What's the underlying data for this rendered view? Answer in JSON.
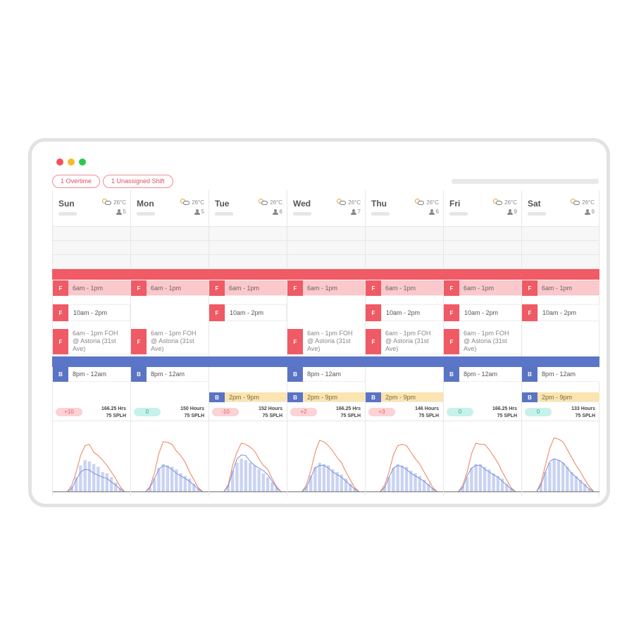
{
  "alerts": [
    "1 Overtime",
    "1 Unassigned Shift"
  ],
  "colors": {
    "shift_f": "#ef5a65",
    "shift_b": "#5a74c4",
    "bar": "#c9d3f2",
    "forecast_line": "#f07f5a",
    "actual_line": "#7d8fd8"
  },
  "days": [
    {
      "name": "Sun",
      "temp": "26°C",
      "staff": "5",
      "shifts": {
        "s1": "6am - 1pm",
        "s2": "10am - 2pm",
        "s3": "6am - 1pm FOH @ Astoria (31st Ave)",
        "s4": "8pm - 12am",
        "s5": ""
      },
      "badge": "+10",
      "badge_kind": "red",
      "hours": "166.25 Hrs",
      "splh": "75 SPLH",
      "forecast": [
        0,
        0,
        0,
        0,
        10,
        30,
        55,
        70,
        72,
        60,
        55,
        48,
        40,
        30,
        20,
        8,
        0,
        0
      ],
      "actual": [
        0,
        0,
        0,
        0,
        5,
        18,
        30,
        34,
        33,
        28,
        25,
        22,
        20,
        15,
        10,
        4,
        0,
        0
      ],
      "bars": [
        0,
        0,
        0,
        0,
        8,
        22,
        40,
        48,
        46,
        42,
        38,
        30,
        28,
        22,
        14,
        6,
        0,
        0
      ]
    },
    {
      "name": "Mon",
      "temp": "26°C",
      "staff": "5",
      "shifts": {
        "s1": "6am - 1pm",
        "s2": "",
        "s3": "6am - 1pm FOH @ Astoria (31st Ave)",
        "s4": "8pm - 12am",
        "s5": ""
      },
      "badge": "0",
      "badge_kind": "teal",
      "hours": "150 Hours",
      "splh": "75 SPLH",
      "forecast": [
        0,
        0,
        0,
        0,
        8,
        28,
        58,
        76,
        75,
        72,
        62,
        55,
        45,
        30,
        18,
        6,
        0,
        0
      ],
      "actual": [
        0,
        0,
        0,
        0,
        6,
        20,
        34,
        40,
        38,
        34,
        28,
        24,
        20,
        16,
        10,
        4,
        0,
        0
      ],
      "bars": [
        0,
        0,
        0,
        0,
        6,
        20,
        36,
        42,
        40,
        38,
        34,
        28,
        24,
        20,
        12,
        5,
        0,
        0
      ]
    },
    {
      "name": "Tue",
      "temp": "26°C",
      "staff": "6",
      "shifts": {
        "s1": "6am - 1pm",
        "s2": "10am - 2pm",
        "s3": "",
        "s4": "",
        "s5": "2pm - 9pm"
      },
      "badge": "-10",
      "badge_kind": "red",
      "hours": "152 Hours",
      "splh": "75 SPLH",
      "forecast": [
        0,
        0,
        0,
        0,
        10,
        40,
        60,
        74,
        72,
        68,
        62,
        50,
        40,
        34,
        20,
        8,
        0,
        0
      ],
      "actual": [
        0,
        0,
        0,
        0,
        8,
        30,
        50,
        56,
        55,
        46,
        40,
        36,
        32,
        26,
        16,
        6,
        0,
        0
      ],
      "bars": [
        0,
        0,
        0,
        0,
        10,
        32,
        44,
        50,
        48,
        44,
        40,
        34,
        28,
        22,
        14,
        6,
        0,
        0
      ]
    },
    {
      "name": "Wed",
      "temp": "26°C",
      "staff": "7",
      "shifts": {
        "s1": "6am - 1pm",
        "s2": "",
        "s3": "6am - 1pm FOH @ Astoria (31st Ave)",
        "s4": "8pm - 12am",
        "s5": "2pm - 9pm"
      },
      "badge": "+2",
      "badge_kind": "red",
      "hours": "166.25 Hrs",
      "splh": "75 SPLH",
      "forecast": [
        0,
        0,
        0,
        0,
        10,
        32,
        60,
        78,
        76,
        70,
        62,
        52,
        44,
        30,
        18,
        6,
        0,
        0
      ],
      "actual": [
        0,
        0,
        0,
        0,
        6,
        22,
        36,
        40,
        40,
        36,
        30,
        26,
        22,
        16,
        10,
        4,
        0,
        0
      ],
      "bars": [
        0,
        0,
        0,
        0,
        8,
        24,
        38,
        44,
        42,
        40,
        34,
        30,
        26,
        20,
        12,
        5,
        0,
        0
      ]
    },
    {
      "name": "Thu",
      "temp": "26°C",
      "staff": "6",
      "shifts": {
        "s1": "6am - 1pm",
        "s2": "10am - 2pm",
        "s3": "6am - 1pm FOH @ Astoria (31st Ave)",
        "s4": "",
        "s5": "2pm - 9pm"
      },
      "badge": "+3",
      "badge_kind": "red",
      "hours": "146 Hours",
      "splh": "75 SPLH",
      "forecast": [
        0,
        0,
        0,
        0,
        10,
        30,
        56,
        70,
        72,
        70,
        60,
        50,
        42,
        30,
        18,
        6,
        0,
        0
      ],
      "actual": [
        0,
        0,
        0,
        0,
        6,
        22,
        36,
        40,
        38,
        34,
        28,
        24,
        20,
        16,
        10,
        4,
        0,
        0
      ],
      "bars": [
        0,
        0,
        0,
        0,
        8,
        22,
        36,
        42,
        40,
        38,
        32,
        28,
        24,
        18,
        12,
        5,
        0,
        0
      ]
    },
    {
      "name": "Fri",
      "temp": "26°C",
      "staff": "9",
      "shifts": {
        "s1": "6am - 1pm",
        "s2": "10am - 2pm",
        "s3": "6am - 1pm FOH @ Astoria (31st Ave)",
        "s4": "8pm - 12am",
        "s5": ""
      },
      "badge": "0",
      "badge_kind": "teal",
      "hours": "166.25 Hrs",
      "splh": "75 SPLH",
      "forecast": [
        0,
        0,
        0,
        0,
        10,
        30,
        58,
        74,
        72,
        72,
        64,
        54,
        44,
        30,
        18,
        6,
        0,
        0
      ],
      "actual": [
        0,
        0,
        0,
        0,
        6,
        24,
        36,
        40,
        40,
        34,
        30,
        26,
        22,
        16,
        10,
        4,
        0,
        0
      ],
      "bars": [
        0,
        0,
        0,
        0,
        8,
        22,
        36,
        42,
        42,
        38,
        34,
        28,
        24,
        20,
        12,
        5,
        0,
        0
      ]
    },
    {
      "name": "Sat",
      "temp": "26°C",
      "staff": "9",
      "shifts": {
        "s1": "6am - 1pm",
        "s2": "10am - 2pm",
        "s3": "",
        "s4": "8pm - 12am",
        "s5": "2pm - 9pm"
      },
      "badge": "0",
      "badge_kind": "teal",
      "hours": "133 Hours",
      "splh": "75 SPLH",
      "forecast": [
        0,
        0,
        0,
        0,
        14,
        40,
        66,
        82,
        80,
        76,
        64,
        52,
        40,
        30,
        18,
        8,
        0,
        0
      ],
      "actual": [
        0,
        0,
        0,
        0,
        10,
        30,
        46,
        50,
        48,
        44,
        36,
        28,
        22,
        16,
        10,
        4,
        0,
        0
      ],
      "bars": [
        0,
        0,
        0,
        0,
        12,
        30,
        44,
        50,
        48,
        44,
        38,
        30,
        24,
        18,
        12,
        5,
        0,
        0
      ]
    }
  ]
}
